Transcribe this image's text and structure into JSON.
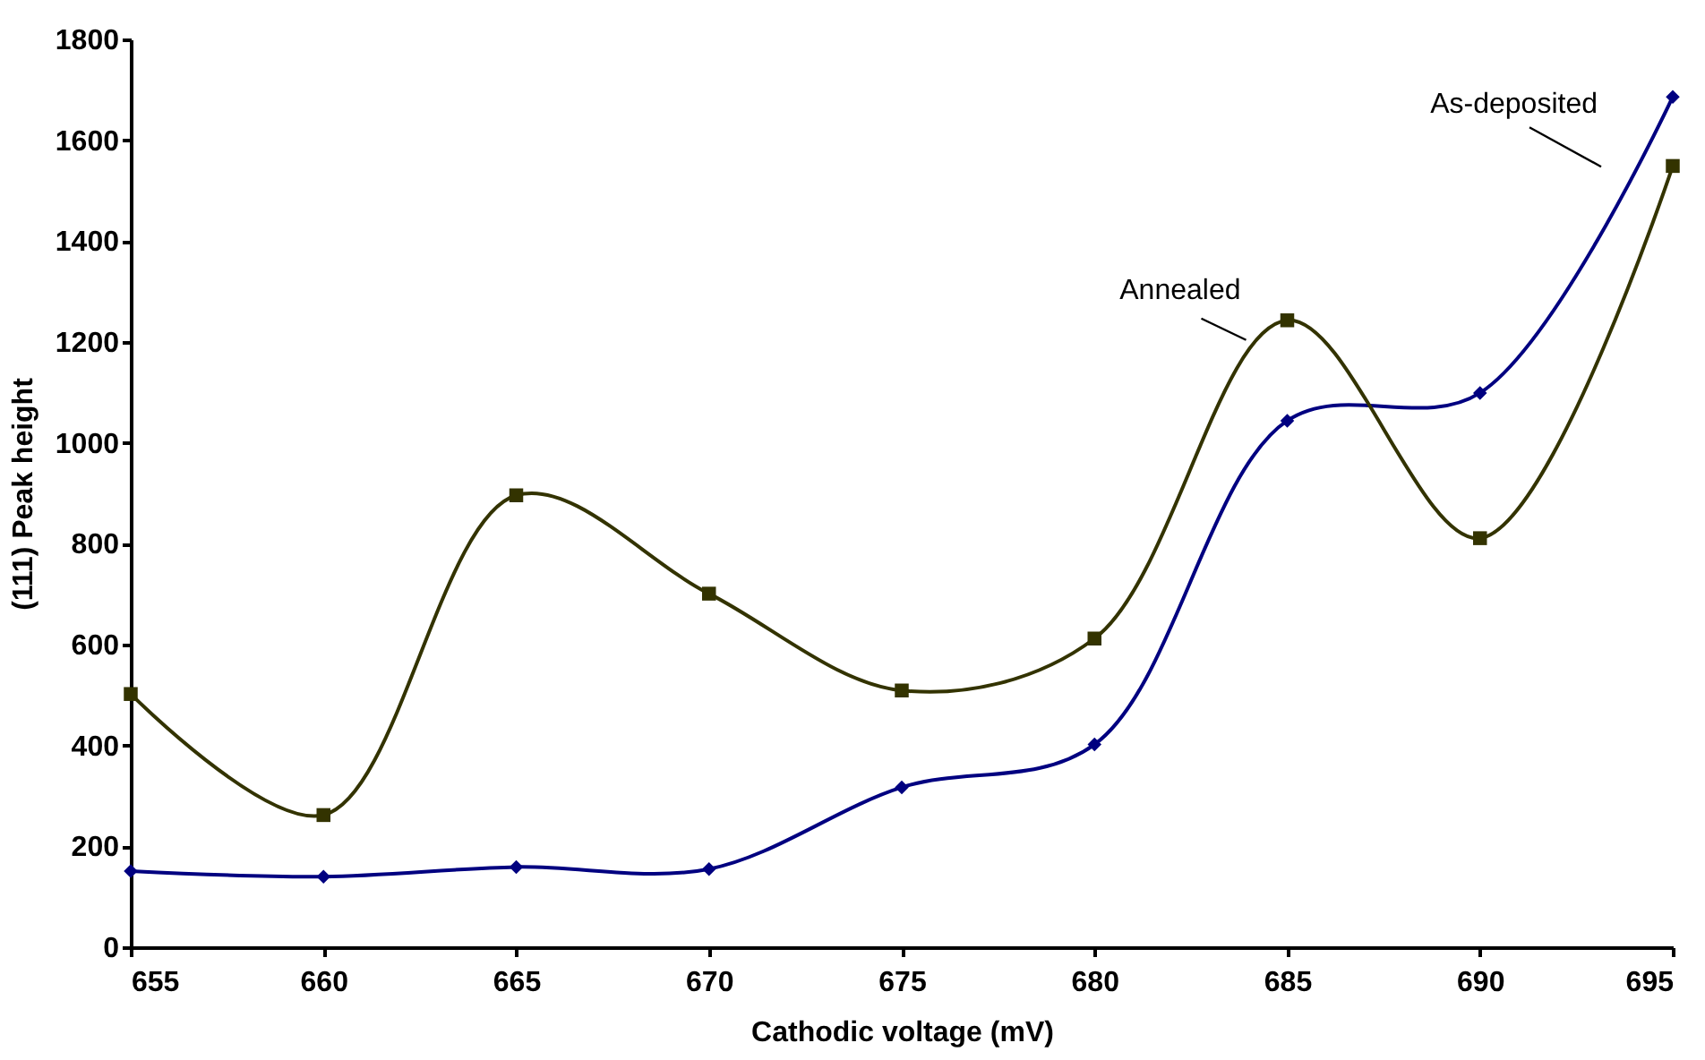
{
  "chart_data": {
    "type": "line",
    "xlabel": "Cathodic voltage (mV)",
    "ylabel": "(111) Peak height",
    "x": [
      655,
      660,
      665,
      670,
      675,
      680,
      685,
      690,
      695
    ],
    "series": [
      {
        "name": "As-deposited",
        "color": "#000080",
        "marker": "diamond",
        "values": [
          151,
          140,
          159,
          155,
          317,
          402,
          1044,
          1099,
          1686
        ]
      },
      {
        "name": "Annealed",
        "color": "#333300",
        "marker": "square",
        "values": [
          502,
          262,
          896,
          701,
          509,
          612,
          1243,
          811,
          1549
        ]
      }
    ],
    "xlim": [
      655,
      695
    ],
    "xticks": [
      655,
      660,
      665,
      670,
      675,
      680,
      685,
      690,
      695
    ],
    "ylim": [
      0,
      1800
    ],
    "yticks": [
      0,
      200,
      400,
      600,
      800,
      1000,
      1200,
      1400,
      1600,
      1800
    ],
    "grid": false,
    "line_style": "solid"
  }
}
